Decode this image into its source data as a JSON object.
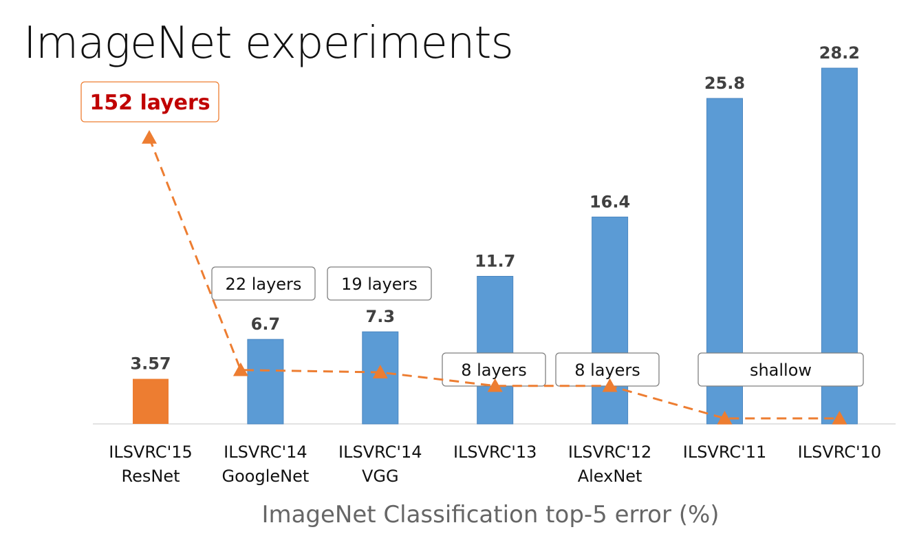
{
  "title": "ImageNet experiments",
  "chart_data": {
    "type": "bar",
    "xlabel": "ImageNet Classification top-5 error (%)",
    "ylabel": "",
    "ylim": [
      0,
      30
    ],
    "grid": false,
    "categories": [
      [
        "ILSVRC'15",
        "ResNet"
      ],
      [
        "ILSVRC'14",
        "GoogleNet"
      ],
      [
        "ILSVRC'14",
        "VGG"
      ],
      [
        "ILSVRC'13"
      ],
      [
        "ILSVRC'12",
        "AlexNet"
      ],
      [
        "ILSVRC'11"
      ],
      [
        "ILSVRC'10"
      ]
    ],
    "values": [
      3.57,
      6.7,
      7.3,
      11.7,
      16.4,
      25.8,
      28.2
    ],
    "value_labels": [
      "3.57",
      "6.7",
      "7.3",
      "11.7",
      "16.4",
      "25.8",
      "28.2"
    ],
    "highlight_index": 0,
    "colors": {
      "bar": "#5b9bd5",
      "highlight": "#ed7d31",
      "line": "#ed7d31",
      "highlight_text": "#c00000"
    },
    "depth_line": {
      "style": "dashed",
      "marker": "triangle",
      "values": [
        152,
        22,
        19,
        8,
        8,
        1,
        1
      ]
    },
    "annotations": [
      "152 layers",
      "22 layers",
      "19 layers",
      "8 layers",
      "8 layers",
      "shallow"
    ]
  }
}
